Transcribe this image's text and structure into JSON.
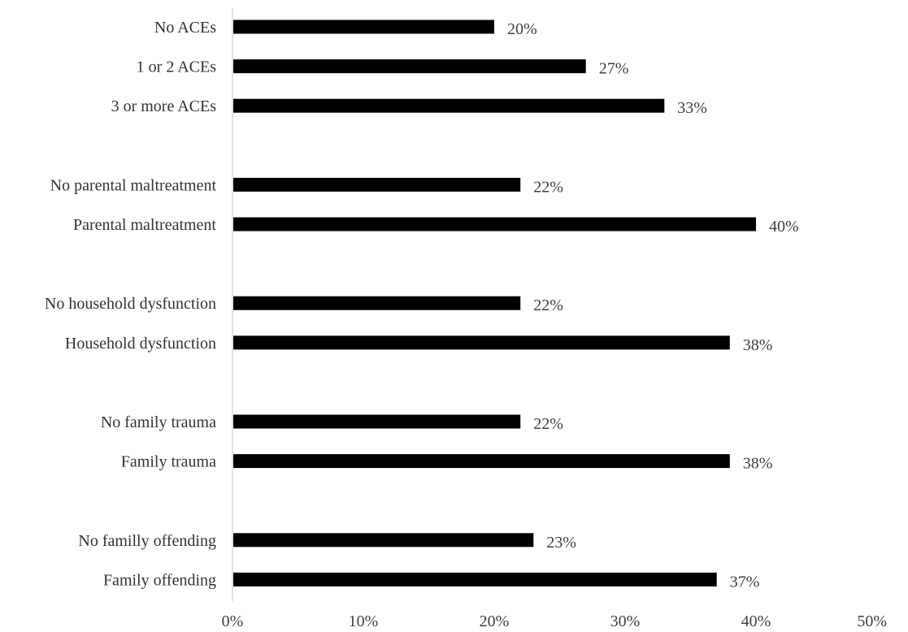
{
  "chart_data": {
    "type": "bar",
    "orientation": "horizontal",
    "categories": [
      "No ACEs",
      "1 or 2 ACEs",
      "3 or more ACEs",
      "",
      "No parental maltreatment",
      "Parental maltreatment",
      "",
      "No household dysfunction",
      "Household dysfunction",
      "",
      "No family trauma",
      "Family trauma",
      "",
      "No familly offending",
      "Family offending"
    ],
    "values": [
      20,
      27,
      33,
      null,
      22,
      40,
      null,
      22,
      38,
      null,
      22,
      38,
      null,
      23,
      37
    ],
    "data_labels": [
      "20%",
      "27%",
      "33%",
      "",
      "22%",
      "40%",
      "",
      "22%",
      "38%",
      "",
      "22%",
      "38%",
      "",
      "23%",
      "37%"
    ],
    "x_ticks": [
      "0%",
      "10%",
      "20%",
      "30%",
      "40%",
      "50%"
    ],
    "xlim": [
      0,
      50
    ],
    "title": "",
    "xlabel": "",
    "ylabel": "",
    "grid": false,
    "legend": "none",
    "bar_color": "#000000",
    "axis_color": "#d9d9d9"
  }
}
